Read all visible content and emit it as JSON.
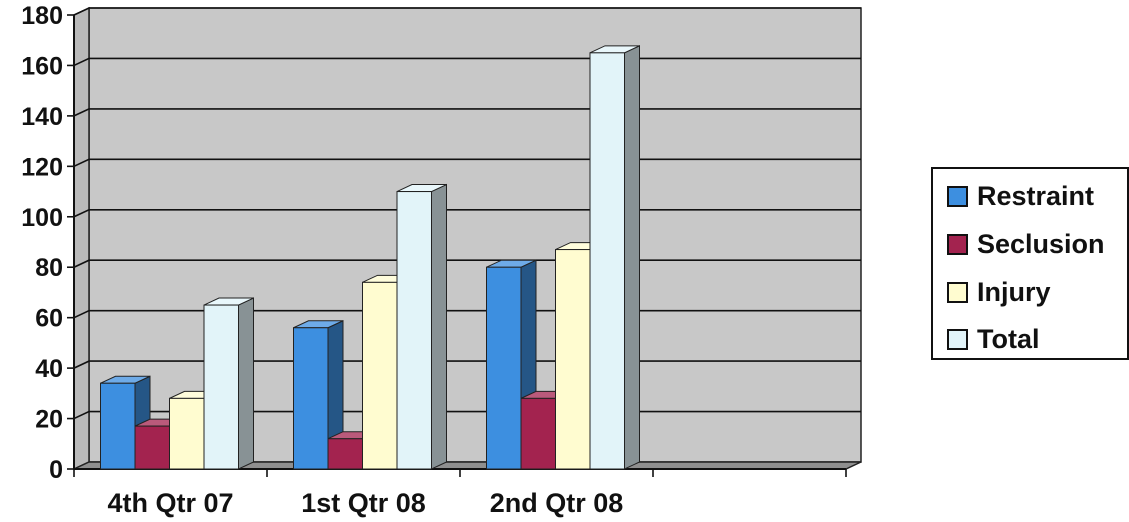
{
  "chart_data": {
    "type": "bar",
    "categories": [
      "4th Qtr 07",
      "1st Qtr 08",
      "2nd Qtr 08",
      ""
    ],
    "series": [
      {
        "name": "Restraint",
        "values": [
          34,
          56,
          80,
          null
        ],
        "color": "#3d8fe0"
      },
      {
        "name": "Seclusion",
        "values": [
          17,
          12,
          28,
          null
        ],
        "color": "#a3234f"
      },
      {
        "name": "Injury",
        "values": [
          28,
          74,
          87,
          null
        ],
        "color": "#fffcd0"
      },
      {
        "name": "Total",
        "values": [
          65,
          110,
          165,
          null
        ],
        "color": "#e2f4f9"
      }
    ],
    "y_ticks": [
      "0",
      "20",
      "40",
      "60",
      "80",
      "100",
      "120",
      "140",
      "160",
      "180"
    ],
    "ylim": [
      0,
      180
    ],
    "title": "",
    "xlabel": "",
    "ylabel": "",
    "grid": true,
    "style": "3d-clustered-column",
    "wall_color": "#c8c8c8",
    "floor_color": "#8f8f8f",
    "legend_position": "right"
  }
}
